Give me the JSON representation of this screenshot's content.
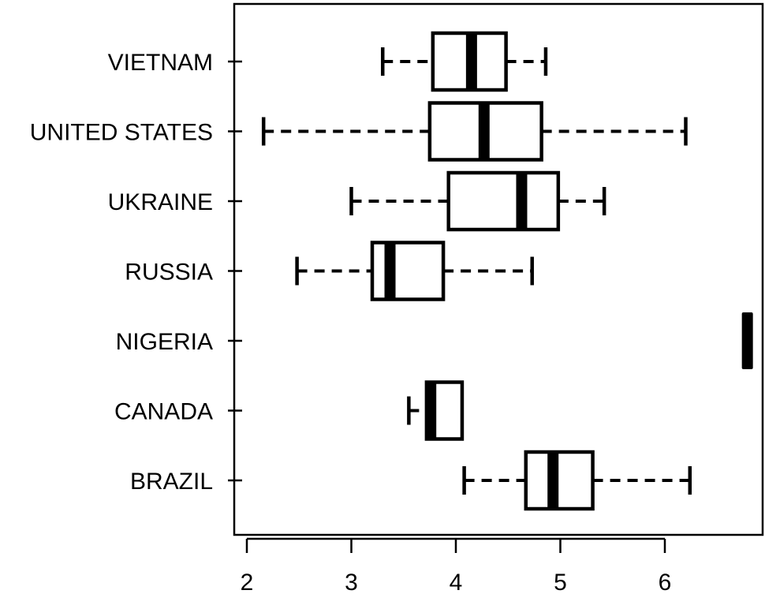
{
  "chart_data": {
    "type": "boxplot",
    "orientation": "horizontal",
    "title": "",
    "xlabel": "",
    "ylabel": "",
    "xlim": [
      2,
      6.95
    ],
    "x_ticks": [
      2,
      3,
      4,
      5,
      6
    ],
    "grid": false,
    "colors": {
      "box_fill": "#ffffff",
      "stroke": "#000000",
      "median": "#000000"
    },
    "categories": [
      "VIETNAM",
      "UNITED STATES",
      "UKRAINE",
      "RUSSIA",
      "NIGERIA",
      "CANADA",
      "BRAZIL"
    ],
    "boxes": [
      {
        "category": "VIETNAM",
        "whisker_low": 3.3,
        "q1": 3.78,
        "median": 4.15,
        "q3": 4.48,
        "whisker_high": 4.86
      },
      {
        "category": "UNITED STATES",
        "whisker_low": 2.16,
        "q1": 3.75,
        "median": 4.27,
        "q3": 4.82,
        "whisker_high": 6.2
      },
      {
        "category": "UKRAINE",
        "whisker_low": 3.0,
        "q1": 3.93,
        "median": 4.63,
        "q3": 4.98,
        "whisker_high": 5.42
      },
      {
        "category": "RUSSIA",
        "whisker_low": 2.48,
        "q1": 3.2,
        "median": 3.37,
        "q3": 3.88,
        "whisker_high": 4.73
      },
      {
        "category": "NIGERIA",
        "whisker_low": 6.79,
        "q1": 6.79,
        "median": 6.79,
        "q3": 6.79,
        "whisker_high": 6.79
      },
      {
        "category": "CANADA",
        "whisker_low": 3.55,
        "q1": 3.72,
        "median": 3.76,
        "q3": 4.06,
        "whisker_high": 4.06
      },
      {
        "category": "BRAZIL",
        "whisker_low": 4.08,
        "q1": 4.67,
        "median": 4.93,
        "q3": 5.31,
        "whisker_high": 6.24
      }
    ]
  }
}
